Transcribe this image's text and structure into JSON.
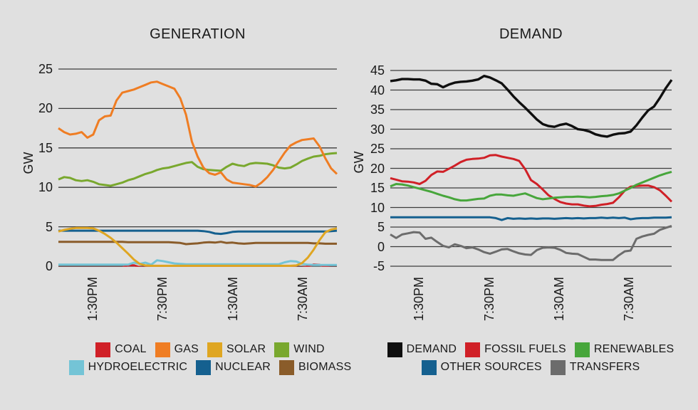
{
  "page": {
    "background": "#e0e0e0",
    "text_color": "#1a1a1a",
    "grid_color": "#3c3c3c"
  },
  "chart_data": [
    {
      "type": "line",
      "title": "GENERATION",
      "ylabel": "GW",
      "xlabel": "",
      "ylim": [
        0,
        25
      ],
      "grid": true,
      "legend_position": "bottom",
      "yticks": [
        25,
        20,
        15,
        10,
        5,
        0
      ],
      "xticks": [
        "1:30PM",
        "7:30PM",
        "1:30AM",
        "7:30AM"
      ],
      "legend_rows": [
        [
          0,
          1,
          2,
          3
        ],
        [
          4,
          5,
          6
        ]
      ],
      "series": [
        {
          "name": "COAL",
          "color": "#d02027",
          "values": [
            0,
            0,
            0,
            0,
            0,
            0,
            0,
            0,
            0,
            0,
            0,
            0,
            0.3,
            0.3,
            0.05,
            0,
            0,
            0,
            0,
            0,
            0,
            0,
            0,
            0,
            0,
            0,
            0,
            0,
            0,
            0,
            0,
            0,
            0,
            0,
            0,
            0,
            0,
            0,
            0,
            0,
            0,
            0,
            0,
            0.15,
            0.4,
            0.35,
            0.1,
            0,
            0
          ]
        },
        {
          "name": "GAS",
          "color": "#ef7d23",
          "values": [
            17.5,
            17.0,
            16.7,
            16.8,
            17.0,
            16.3,
            16.7,
            18.5,
            19.0,
            19.1,
            21.0,
            22.0,
            22.2,
            22.4,
            22.7,
            23.0,
            23.3,
            23.4,
            23.1,
            22.8,
            22.5,
            21.3,
            19.2,
            15.8,
            13.9,
            12.5,
            11.8,
            11.6,
            11.9,
            11.0,
            10.6,
            10.5,
            10.4,
            10.3,
            10.1,
            10.6,
            11.3,
            12.2,
            13.3,
            14.4,
            15.3,
            15.7,
            16.0,
            16.1,
            16.2,
            15.2,
            13.7,
            12.4,
            11.7
          ]
        },
        {
          "name": "SOLAR",
          "color": "#dfa622",
          "values": [
            4.4,
            4.6,
            4.75,
            4.85,
            4.85,
            4.85,
            4.8,
            4.5,
            4.1,
            3.6,
            3.0,
            2.3,
            1.6,
            0.85,
            0.3,
            0.1,
            0.05,
            0.05,
            0.05,
            0.05,
            0.05,
            0.05,
            0.05,
            0.05,
            0.05,
            0.05,
            0.05,
            0.05,
            0.05,
            0.05,
            0.05,
            0.05,
            0.05,
            0.05,
            0.05,
            0.05,
            0.05,
            0.05,
            0.05,
            0.05,
            0.05,
            0.1,
            0.4,
            1.1,
            2.1,
            3.3,
            4.3,
            4.65,
            4.8
          ]
        },
        {
          "name": "WIND",
          "color": "#79a82e",
          "values": [
            11.0,
            11.3,
            11.2,
            10.9,
            10.8,
            10.9,
            10.7,
            10.4,
            10.3,
            10.2,
            10.4,
            10.6,
            10.9,
            11.1,
            11.4,
            11.7,
            11.9,
            12.2,
            12.4,
            12.5,
            12.7,
            12.9,
            13.1,
            13.2,
            12.6,
            12.3,
            12.2,
            12.15,
            12.1,
            12.6,
            13.0,
            12.8,
            12.7,
            13.0,
            13.1,
            13.05,
            13.0,
            12.8,
            12.5,
            12.4,
            12.5,
            12.9,
            13.35,
            13.65,
            13.9,
            14.0,
            14.2,
            14.3,
            14.35
          ]
        },
        {
          "name": "HYDROELECTRIC",
          "color": "#74c4d6",
          "values": [
            0.2,
            0.2,
            0.2,
            0.2,
            0.2,
            0.2,
            0.2,
            0.2,
            0.2,
            0.2,
            0.2,
            0.2,
            0.2,
            0.45,
            0.3,
            0.45,
            0.2,
            0.75,
            0.65,
            0.5,
            0.35,
            0.3,
            0.25,
            0.25,
            0.25,
            0.25,
            0.25,
            0.25,
            0.25,
            0.25,
            0.25,
            0.25,
            0.25,
            0.25,
            0.25,
            0.25,
            0.25,
            0.25,
            0.25,
            0.5,
            0.65,
            0.6,
            0.3,
            0.2,
            0.15,
            0.15,
            0.15,
            0.15,
            0.15
          ]
        },
        {
          "name": "NUCLEAR",
          "color": "#15608f",
          "values": [
            4.5,
            4.5,
            4.5,
            4.5,
            4.5,
            4.5,
            4.5,
            4.5,
            4.5,
            4.5,
            4.5,
            4.5,
            4.5,
            4.5,
            4.5,
            4.5,
            4.5,
            4.5,
            4.5,
            4.5,
            4.5,
            4.5,
            4.5,
            4.5,
            4.5,
            4.45,
            4.35,
            4.15,
            4.1,
            4.2,
            4.35,
            4.4,
            4.4,
            4.4,
            4.4,
            4.4,
            4.4,
            4.4,
            4.4,
            4.4,
            4.4,
            4.4,
            4.4,
            4.4,
            4.4,
            4.4,
            4.4,
            4.45,
            4.5
          ]
        },
        {
          "name": "BIOMASS",
          "color": "#8a5c2a",
          "values": [
            3.1,
            3.1,
            3.1,
            3.1,
            3.1,
            3.1,
            3.1,
            3.1,
            3.1,
            3.1,
            3.1,
            3.1,
            3.05,
            3.05,
            3.05,
            3.05,
            3.05,
            3.05,
            3.05,
            3.05,
            3.0,
            2.95,
            2.8,
            2.85,
            2.9,
            3.0,
            3.05,
            3.0,
            3.1,
            2.95,
            3.0,
            2.9,
            2.85,
            2.9,
            2.95,
            2.95,
            2.95,
            2.95,
            2.95,
            2.95,
            2.95,
            2.95,
            2.95,
            2.95,
            2.9,
            2.9,
            2.85,
            2.85,
            2.85
          ]
        }
      ]
    },
    {
      "type": "line",
      "title": "DEMAND",
      "ylabel": "GW",
      "xlabel": "",
      "ylim": [
        -5,
        45
      ],
      "grid": true,
      "legend_position": "bottom",
      "yticks": [
        45,
        40,
        35,
        30,
        25,
        20,
        15,
        10,
        5,
        0,
        -5
      ],
      "xticks": [
        "1:30PM",
        "7:30PM",
        "1:30AM",
        "7:30AM"
      ],
      "legend_rows": [
        [
          0,
          1,
          2
        ],
        [
          3,
          4
        ]
      ],
      "series": [
        {
          "name": "DEMAND",
          "color": "#0f0f0f",
          "values": [
            42.3,
            42.5,
            42.8,
            42.8,
            42.7,
            42.7,
            42.4,
            41.6,
            41.5,
            40.7,
            41.4,
            41.9,
            42.1,
            42.2,
            42.4,
            42.7,
            43.6,
            43.2,
            42.5,
            41.7,
            40.1,
            38.4,
            36.9,
            35.5,
            34.0,
            32.5,
            31.3,
            30.8,
            30.6,
            31.1,
            31.4,
            30.8,
            30.0,
            29.8,
            29.4,
            28.7,
            28.3,
            28.1,
            28.6,
            28.9,
            29.0,
            29.4,
            31.0,
            33.0,
            34.8,
            35.8,
            38.0,
            40.5,
            42.6
          ]
        },
        {
          "name": "FOSSIL FUELS",
          "color": "#d02027",
          "values": [
            17.5,
            17.1,
            16.7,
            16.6,
            16.4,
            16.0,
            16.8,
            18.3,
            19.2,
            19.1,
            19.9,
            20.7,
            21.6,
            22.2,
            22.4,
            22.5,
            22.7,
            23.3,
            23.4,
            23.0,
            22.7,
            22.4,
            21.9,
            19.8,
            17.0,
            16.0,
            14.6,
            13.1,
            12.2,
            11.4,
            11.0,
            10.8,
            10.8,
            10.5,
            10.3,
            10.4,
            10.7,
            10.9,
            11.2,
            12.6,
            14.3,
            15.3,
            15.5,
            15.6,
            15.6,
            15.2,
            14.4,
            13.0,
            11.5
          ]
        },
        {
          "name": "RENEWABLES",
          "color": "#47a63b",
          "values": [
            15.4,
            16.0,
            15.9,
            15.6,
            15.2,
            14.8,
            14.4,
            14.0,
            13.5,
            13.0,
            12.6,
            12.1,
            11.8,
            11.8,
            12.0,
            12.2,
            12.3,
            13.0,
            13.3,
            13.3,
            13.1,
            13.0,
            13.3,
            13.6,
            13.0,
            12.4,
            12.1,
            12.3,
            12.5,
            12.6,
            12.7,
            12.7,
            12.8,
            12.7,
            12.6,
            12.7,
            12.9,
            13.0,
            13.2,
            13.6,
            14.3,
            15.0,
            15.8,
            16.4,
            17.0,
            17.6,
            18.2,
            18.7,
            19.1
          ]
        },
        {
          "name": "OTHER SOURCES",
          "color": "#15608f",
          "values": [
            7.5,
            7.5,
            7.5,
            7.5,
            7.5,
            7.5,
            7.5,
            7.5,
            7.5,
            7.5,
            7.5,
            7.5,
            7.5,
            7.5,
            7.5,
            7.5,
            7.5,
            7.5,
            7.3,
            6.8,
            7.3,
            7.1,
            7.2,
            7.1,
            7.2,
            7.1,
            7.2,
            7.2,
            7.1,
            7.2,
            7.3,
            7.2,
            7.3,
            7.2,
            7.3,
            7.3,
            7.4,
            7.3,
            7.4,
            7.3,
            7.4,
            7.0,
            7.2,
            7.3,
            7.3,
            7.4,
            7.4,
            7.4,
            7.5
          ]
        },
        {
          "name": "TRANSFERS",
          "color": "#6c6c6c",
          "values": [
            3.1,
            2.2,
            3.1,
            3.4,
            3.7,
            3.6,
            2.0,
            2.3,
            1.2,
            0.2,
            -0.2,
            0.6,
            0.2,
            -0.4,
            -0.2,
            -0.7,
            -1.4,
            -1.8,
            -1.3,
            -0.7,
            -0.6,
            -1.2,
            -1.7,
            -2.0,
            -2.1,
            -0.9,
            -0.3,
            -0.2,
            -0.3,
            -0.8,
            -1.6,
            -1.8,
            -1.9,
            -2.6,
            -3.3,
            -3.3,
            -3.4,
            -3.4,
            -3.4,
            -2.2,
            -1.2,
            -1.0,
            2.0,
            2.6,
            3.0,
            3.3,
            4.3,
            4.8,
            5.3
          ]
        }
      ]
    }
  ]
}
